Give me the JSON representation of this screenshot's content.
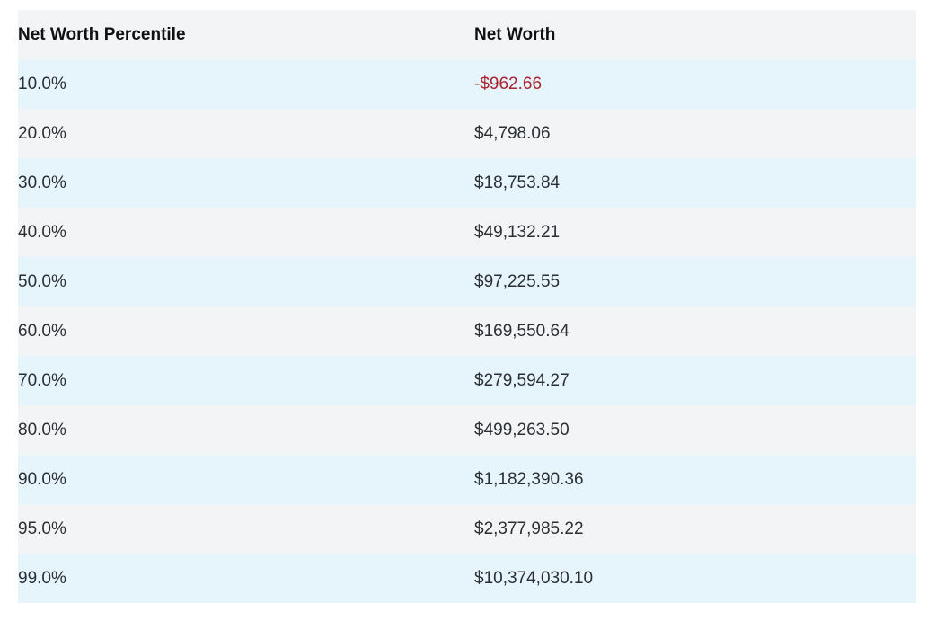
{
  "table": {
    "headers": [
      "Net Worth Percentile",
      "Net Worth"
    ],
    "rows": [
      {
        "percentile": "10.0%",
        "net_worth": "-$962.66",
        "negative": true
      },
      {
        "percentile": "20.0%",
        "net_worth": "$4,798.06",
        "negative": false
      },
      {
        "percentile": "30.0%",
        "net_worth": "$18,753.84",
        "negative": false
      },
      {
        "percentile": "40.0%",
        "net_worth": "$49,132.21",
        "negative": false
      },
      {
        "percentile": "50.0%",
        "net_worth": "$97,225.55",
        "negative": false
      },
      {
        "percentile": "60.0%",
        "net_worth": "$169,550.64",
        "negative": false
      },
      {
        "percentile": "70.0%",
        "net_worth": "$279,594.27",
        "negative": false
      },
      {
        "percentile": "80.0%",
        "net_worth": "$499,263.50",
        "negative": false
      },
      {
        "percentile": "90.0%",
        "net_worth": "$1,182,390.36",
        "negative": false
      },
      {
        "percentile": "95.0%",
        "net_worth": "$2,377,985.22",
        "negative": false
      },
      {
        "percentile": "99.0%",
        "net_worth": "$10,374,030.10",
        "negative": false
      }
    ]
  },
  "colors": {
    "header_bg": "#f3f4f6",
    "row_odd_bg": "#e6f4fc",
    "row_even_bg": "#f3f4f6",
    "negative_text": "#a8242c"
  }
}
